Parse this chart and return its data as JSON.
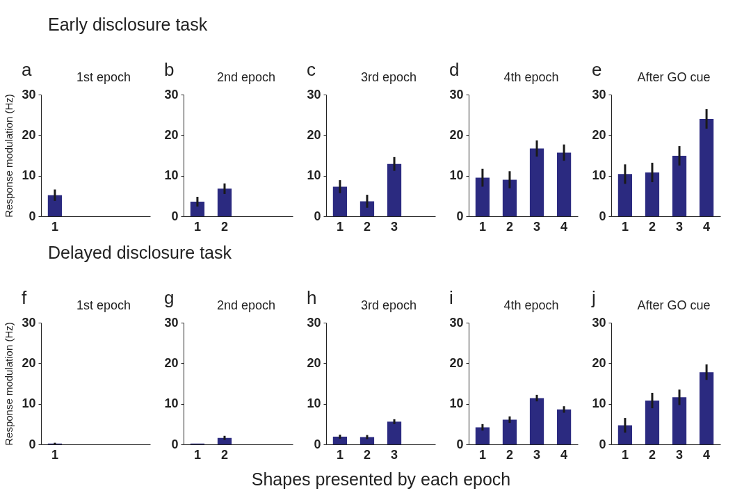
{
  "chart_data": [
    {
      "type": "bar",
      "title": "1st epoch",
      "ylabel": "Response modulation (Hz)",
      "annotations": [
        "Early disclosure task",
        "a"
      ],
      "categories": [
        "1",
        null,
        null,
        null
      ],
      "values": [
        5.2,
        0,
        0,
        0
      ],
      "errors": [
        1.4,
        null,
        null,
        null
      ],
      "color": "#2b2a80",
      "ylim": [
        0,
        30
      ],
      "yticks": [
        0,
        10,
        20,
        30
      ]
    },
    {
      "type": "bar",
      "title": "2nd epoch",
      "annotations": [
        "b"
      ],
      "categories": [
        "1",
        "2",
        null,
        null
      ],
      "values": [
        3.6,
        6.8,
        0,
        0
      ],
      "errors": [
        1.2,
        1.3,
        null,
        null
      ],
      "color": "#2b2a80",
      "ylim": [
        0,
        30
      ],
      "yticks": [
        0,
        10,
        20,
        30
      ]
    },
    {
      "type": "bar",
      "title": "3rd epoch",
      "annotations": [
        "c"
      ],
      "categories": [
        "1",
        "2",
        "3",
        null
      ],
      "values": [
        7.3,
        3.7,
        12.9,
        0
      ],
      "errors": [
        1.6,
        1.6,
        1.7,
        null
      ],
      "color": "#2b2a80",
      "ylim": [
        0,
        30
      ],
      "yticks": [
        0,
        10,
        20,
        30
      ]
    },
    {
      "type": "bar",
      "title": "4th epoch",
      "annotations": [
        "d"
      ],
      "categories": [
        "1",
        "2",
        "3",
        "4"
      ],
      "values": [
        9.5,
        9.0,
        16.7,
        15.7
      ],
      "errors": [
        2.2,
        2.1,
        2.0,
        2.0
      ],
      "color": "#2b2a80",
      "ylim": [
        0,
        30
      ],
      "yticks": [
        0,
        10,
        20,
        30
      ]
    },
    {
      "type": "bar",
      "title": "After GO cue",
      "annotations": [
        "e"
      ],
      "categories": [
        "1",
        "2",
        "3",
        "4"
      ],
      "values": [
        10.4,
        10.8,
        14.9,
        24.0
      ],
      "errors": [
        2.4,
        2.4,
        2.4,
        2.4
      ],
      "color": "#2b2a80",
      "ylim": [
        0,
        30
      ],
      "yticks": [
        0,
        10,
        20,
        30
      ]
    },
    {
      "type": "bar",
      "title": "1st epoch",
      "ylabel": "Response modulation (Hz)",
      "annotations": [
        "Delayed disclosure task",
        "f"
      ],
      "categories": [
        "1",
        null,
        null,
        null
      ],
      "values": [
        0.2,
        0,
        0,
        0
      ],
      "errors": [
        0.2,
        null,
        null,
        null
      ],
      "color": "#2b2a80",
      "ylim": [
        0,
        30
      ],
      "yticks": [
        0,
        10,
        20,
        30
      ]
    },
    {
      "type": "bar",
      "title": "2nd epoch",
      "annotations": [
        "g"
      ],
      "categories": [
        "1",
        "2",
        null,
        null
      ],
      "values": [
        0.2,
        1.6,
        0,
        0
      ],
      "errors": [
        null,
        0.5,
        null,
        null
      ],
      "color": "#2b2a80",
      "ylim": [
        0,
        30
      ],
      "yticks": [
        0,
        10,
        20,
        30
      ]
    },
    {
      "type": "bar",
      "title": "3rd epoch",
      "xlabel": "Shapes presented by each epoch",
      "annotations": [
        "h"
      ],
      "categories": [
        "1",
        "2",
        "3",
        null
      ],
      "values": [
        1.9,
        1.8,
        5.6,
        0
      ],
      "errors": [
        0.5,
        0.5,
        0.6,
        null
      ],
      "color": "#2b2a80",
      "ylim": [
        0,
        30
      ],
      "yticks": [
        0,
        10,
        20,
        30
      ]
    },
    {
      "type": "bar",
      "title": "4th epoch",
      "annotations": [
        "i"
      ],
      "categories": [
        "1",
        "2",
        "3",
        "4"
      ],
      "values": [
        4.2,
        6.1,
        11.4,
        8.6
      ],
      "errors": [
        0.8,
        0.8,
        0.8,
        0.8
      ],
      "color": "#2b2a80",
      "ylim": [
        0,
        30
      ],
      "yticks": [
        0,
        10,
        20,
        30
      ]
    },
    {
      "type": "bar",
      "title": "After GO cue",
      "annotations": [
        "j"
      ],
      "categories": [
        "1",
        "2",
        "3",
        "4"
      ],
      "values": [
        4.7,
        10.8,
        11.6,
        17.8
      ],
      "errors": [
        1.8,
        1.9,
        1.9,
        1.9
      ],
      "color": "#2b2a80",
      "ylim": [
        0,
        30
      ],
      "yticks": [
        0,
        10,
        20,
        30
      ]
    }
  ]
}
